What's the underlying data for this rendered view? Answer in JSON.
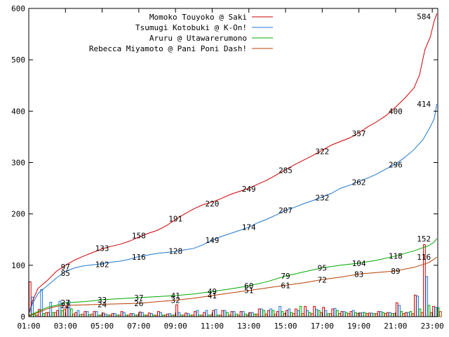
{
  "chart_data": {
    "type": "line",
    "title": "",
    "xlabel": "",
    "ylabel": "",
    "ylim": [
      0,
      600
    ],
    "y_ticks": [
      "0",
      "100",
      "200",
      "300",
      "400",
      "500",
      "600"
    ],
    "x_tick_labels": [
      "01:00",
      "03:00",
      "05:00",
      "07:00",
      "09:00",
      "11:00",
      "13:00",
      "15:00",
      "17:00",
      "19:00",
      "21:00",
      "23:00"
    ],
    "x_tick_hours": [
      1,
      3,
      5,
      7,
      9,
      11,
      13,
      15,
      17,
      19,
      21,
      23
    ],
    "x_range_hours": [
      1,
      23.3
    ],
    "grid": false,
    "legend_position": "top",
    "series": [
      {
        "name": "Momoko Touyoko @ Saki",
        "color": "#cc0000",
        "points": [
          [
            1.0,
            5
          ],
          [
            1.2,
            30
          ],
          [
            1.5,
            55
          ],
          [
            2.0,
            70
          ],
          [
            2.5,
            88
          ],
          [
            3.0,
            100
          ],
          [
            3.5,
            110
          ],
          [
            4.0,
            118
          ],
          [
            4.5,
            125
          ],
          [
            5.0,
            132
          ],
          [
            5.5,
            137
          ],
          [
            6.0,
            141
          ],
          [
            6.5,
            147
          ],
          [
            7.0,
            155
          ],
          [
            7.5,
            162
          ],
          [
            8.0,
            168
          ],
          [
            8.5,
            177
          ],
          [
            9.0,
            189
          ],
          [
            9.5,
            200
          ],
          [
            10.0,
            210
          ],
          [
            10.5,
            218
          ],
          [
            11.0,
            223
          ],
          [
            11.5,
            230
          ],
          [
            12.0,
            238
          ],
          [
            12.5,
            244
          ],
          [
            13.0,
            250
          ],
          [
            13.5,
            258
          ],
          [
            14.0,
            266
          ],
          [
            14.5,
            276
          ],
          [
            15.0,
            286
          ],
          [
            15.5,
            296
          ],
          [
            16.0,
            305
          ],
          [
            16.5,
            314
          ],
          [
            17.0,
            324
          ],
          [
            17.5,
            334
          ],
          [
            18.0,
            341
          ],
          [
            18.5,
            348
          ],
          [
            19.0,
            358
          ],
          [
            19.5,
            370
          ],
          [
            20.0,
            380
          ],
          [
            20.5,
            392
          ],
          [
            21.0,
            408
          ],
          [
            21.5,
            425
          ],
          [
            22.0,
            445
          ],
          [
            22.3,
            470
          ],
          [
            22.6,
            520
          ],
          [
            22.9,
            545
          ],
          [
            23.1,
            575
          ],
          [
            23.25,
            590
          ]
        ],
        "labels": [
          [
            3.0,
            97,
            "97"
          ],
          [
            5.0,
            133,
            "133"
          ],
          [
            7.0,
            158,
            "158"
          ],
          [
            9.0,
            191,
            "191"
          ],
          [
            11.0,
            220,
            "220"
          ],
          [
            13.0,
            249,
            "249"
          ],
          [
            15.0,
            285,
            "285"
          ],
          [
            17.0,
            322,
            "322"
          ],
          [
            19.0,
            357,
            "357"
          ],
          [
            21.0,
            400,
            "400"
          ],
          [
            23.0,
            584,
            "584"
          ]
        ]
      },
      {
        "name": "Tsumugi Kotobuki @ K-On!",
        "color": "#1f77d0",
        "points": [
          [
            1.0,
            5
          ],
          [
            1.2,
            25
          ],
          [
            1.5,
            45
          ],
          [
            2.0,
            60
          ],
          [
            2.5,
            75
          ],
          [
            3.0,
            88
          ],
          [
            3.5,
            95
          ],
          [
            4.0,
            99
          ],
          [
            4.5,
            101
          ],
          [
            5.0,
            103
          ],
          [
            5.5,
            106
          ],
          [
            6.0,
            108
          ],
          [
            6.5,
            112
          ],
          [
            7.0,
            117
          ],
          [
            7.5,
            120
          ],
          [
            8.0,
            123
          ],
          [
            8.5,
            125
          ],
          [
            9.0,
            127
          ],
          [
            9.5,
            130
          ],
          [
            10.0,
            133
          ],
          [
            10.5,
            140
          ],
          [
            11.0,
            149
          ],
          [
            11.5,
            156
          ],
          [
            12.0,
            162
          ],
          [
            12.5,
            168
          ],
          [
            13.0,
            174
          ],
          [
            13.5,
            183
          ],
          [
            14.0,
            190
          ],
          [
            14.5,
            198
          ],
          [
            15.0,
            207
          ],
          [
            15.5,
            213
          ],
          [
            16.0,
            220
          ],
          [
            16.5,
            226
          ],
          [
            17.0,
            233
          ],
          [
            17.5,
            240
          ],
          [
            18.0,
            250
          ],
          [
            18.5,
            256
          ],
          [
            19.0,
            263
          ],
          [
            19.5,
            270
          ],
          [
            20.0,
            278
          ],
          [
            20.5,
            288
          ],
          [
            21.0,
            297
          ],
          [
            21.5,
            310
          ],
          [
            22.0,
            325
          ],
          [
            22.5,
            345
          ],
          [
            22.9,
            370
          ],
          [
            23.1,
            385
          ],
          [
            23.25,
            414
          ]
        ],
        "labels": [
          [
            3.0,
            85,
            "85"
          ],
          [
            5.0,
            102,
            "102"
          ],
          [
            7.0,
            116,
            "116"
          ],
          [
            9.0,
            128,
            "128"
          ],
          [
            11.0,
            149,
            "149"
          ],
          [
            13.0,
            174,
            "174"
          ],
          [
            15.0,
            207,
            "207"
          ],
          [
            17.0,
            232,
            "232"
          ],
          [
            19.0,
            262,
            "262"
          ],
          [
            21.0,
            296,
            "296"
          ],
          [
            23.0,
            414,
            "414"
          ]
        ]
      },
      {
        "name": "Aruru @ Utawarerumono",
        "color": "#00aa00",
        "points": [
          [
            1.0,
            2
          ],
          [
            1.5,
            10
          ],
          [
            2.0,
            18
          ],
          [
            2.5,
            22
          ],
          [
            3.0,
            27
          ],
          [
            4.0,
            29
          ],
          [
            5.0,
            33
          ],
          [
            6.0,
            35
          ],
          [
            7.0,
            37
          ],
          [
            8.0,
            39
          ],
          [
            9.0,
            41
          ],
          [
            10.0,
            44
          ],
          [
            11.0,
            49
          ],
          [
            12.0,
            54
          ],
          [
            13.0,
            60
          ],
          [
            14.0,
            68
          ],
          [
            15.0,
            79
          ],
          [
            16.0,
            87
          ],
          [
            17.0,
            95
          ],
          [
            18.0,
            100
          ],
          [
            19.0,
            104
          ],
          [
            20.0,
            110
          ],
          [
            21.0,
            118
          ],
          [
            22.0,
            128
          ],
          [
            22.8,
            138
          ],
          [
            23.1,
            145
          ],
          [
            23.25,
            152
          ]
        ],
        "labels": [
          [
            3.0,
            27,
            "27"
          ],
          [
            5.0,
            33,
            "33"
          ],
          [
            7.0,
            37,
            "37"
          ],
          [
            9.0,
            41,
            "41"
          ],
          [
            11.0,
            49,
            "49"
          ],
          [
            13.0,
            60,
            "60"
          ],
          [
            15.0,
            79,
            "79"
          ],
          [
            17.0,
            95,
            "95"
          ],
          [
            19.0,
            104,
            "104"
          ],
          [
            21.0,
            118,
            "118"
          ],
          [
            23.0,
            152,
            "152"
          ]
        ]
      },
      {
        "name": "Rebecca Miyamoto @ Pani Poni Dash!",
        "color": "#b84000",
        "points": [
          [
            1.0,
            1
          ],
          [
            1.5,
            8
          ],
          [
            2.0,
            15
          ],
          [
            2.5,
            20
          ],
          [
            3.0,
            22
          ],
          [
            4.0,
            23
          ],
          [
            5.0,
            24
          ],
          [
            6.0,
            25
          ],
          [
            7.0,
            26
          ],
          [
            8.0,
            29
          ],
          [
            9.0,
            32
          ],
          [
            10.0,
            36
          ],
          [
            11.0,
            41
          ],
          [
            12.0,
            46
          ],
          [
            13.0,
            51
          ],
          [
            14.0,
            56
          ],
          [
            15.0,
            61
          ],
          [
            16.0,
            66
          ],
          [
            17.0,
            72
          ],
          [
            18.0,
            77
          ],
          [
            19.0,
            83
          ],
          [
            20.0,
            86
          ],
          [
            21.0,
            89
          ],
          [
            22.0,
            96
          ],
          [
            22.8,
            105
          ],
          [
            23.1,
            112
          ],
          [
            23.25,
            116
          ]
        ],
        "labels": [
          [
            3.0,
            22,
            "22"
          ],
          [
            5.0,
            24,
            "24"
          ],
          [
            7.0,
            26,
            "26"
          ],
          [
            9.0,
            32,
            "32"
          ],
          [
            11.0,
            41,
            "41"
          ],
          [
            13.0,
            51,
            "51"
          ],
          [
            15.0,
            61,
            "61"
          ],
          [
            17.0,
            72,
            "72"
          ],
          [
            19.0,
            83,
            "83"
          ],
          [
            21.0,
            89,
            "89"
          ],
          [
            23.0,
            116,
            "116"
          ]
        ]
      }
    ],
    "bars": {
      "bin_start": [
        1.0,
        1.5,
        2.0,
        2.5,
        3.0,
        3.5,
        4.0,
        4.5,
        5.0,
        5.5,
        6.0,
        6.5,
        7.0,
        7.5,
        8.0,
        8.5,
        9.0,
        9.5,
        10.0,
        10.5,
        11.0,
        11.5,
        12.0,
        12.5,
        13.0,
        13.5,
        14.0,
        14.5,
        15.0,
        15.5,
        16.0,
        16.5,
        17.0,
        17.5,
        18.0,
        18.5,
        19.0,
        19.5,
        20.0,
        20.5,
        21.0,
        21.5,
        22.0,
        22.5,
        23.0
      ],
      "values": [
        [
          68,
          14,
          8,
          12,
          20,
          8,
          10,
          10,
          7,
          6,
          10,
          6,
          9,
          7,
          10,
          5,
          23,
          7,
          10,
          8,
          12,
          12,
          10,
          10,
          8,
          15,
          12,
          10,
          12,
          15,
          20,
          20,
          18,
          15,
          10,
          10,
          7,
          7,
          10,
          8,
          27,
          8,
          42,
          140,
          20
        ],
        [
          38,
          53,
          28,
          30,
          30,
          12,
          10,
          10,
          5,
          6,
          8,
          6,
          8,
          6,
          8,
          6,
          8,
          6,
          12,
          12,
          14,
          12,
          10,
          10,
          8,
          15,
          15,
          20,
          15,
          12,
          12,
          14,
          12,
          16,
          10,
          12,
          8,
          7,
          10,
          8,
          22,
          8,
          40,
          78,
          18
        ],
        [
          4,
          6,
          8,
          12,
          15,
          4,
          4,
          3,
          3,
          3,
          3,
          3,
          3,
          3,
          3,
          3,
          3,
          3,
          3,
          3,
          3,
          8,
          5,
          5,
          5,
          12,
          12,
          10,
          8,
          20,
          8,
          12,
          6,
          12,
          8,
          8,
          8,
          6,
          8,
          6,
          10,
          10,
          15,
          22,
          17
        ],
        [
          3,
          8,
          8,
          14,
          5,
          5,
          5,
          3,
          3,
          3,
          3,
          3,
          3,
          3,
          3,
          3,
          3,
          3,
          3,
          3,
          3,
          3,
          3,
          3,
          5,
          5,
          5,
          6,
          6,
          6,
          6,
          8,
          6,
          6,
          6,
          6,
          6,
          6,
          6,
          6,
          6,
          6,
          8,
          8,
          10
        ]
      ]
    }
  }
}
